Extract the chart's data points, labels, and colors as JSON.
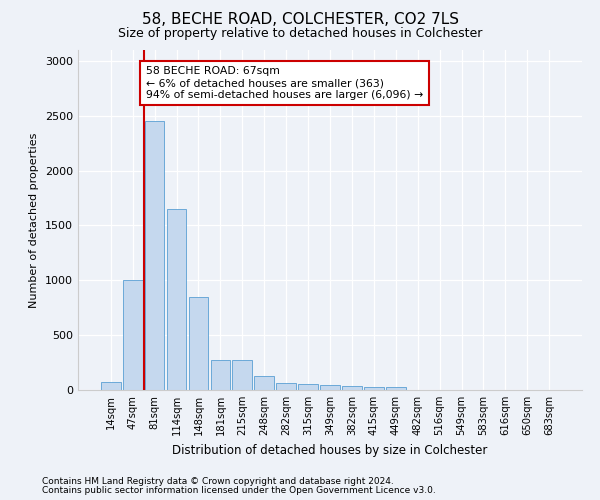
{
  "title1": "58, BECHE ROAD, COLCHESTER, CO2 7LS",
  "title2": "Size of property relative to detached houses in Colchester",
  "xlabel": "Distribution of detached houses by size in Colchester",
  "ylabel": "Number of detached properties",
  "categories": [
    "14sqm",
    "47sqm",
    "81sqm",
    "114sqm",
    "148sqm",
    "181sqm",
    "215sqm",
    "248sqm",
    "282sqm",
    "315sqm",
    "349sqm",
    "382sqm",
    "415sqm",
    "449sqm",
    "482sqm",
    "516sqm",
    "549sqm",
    "583sqm",
    "616sqm",
    "650sqm",
    "683sqm"
  ],
  "values": [
    75,
    1000,
    2450,
    1650,
    850,
    270,
    270,
    130,
    60,
    55,
    50,
    40,
    30,
    25,
    0,
    0,
    0,
    0,
    0,
    0,
    0
  ],
  "bar_color": "#c5d8ee",
  "bar_edge_color": "#5a9fd4",
  "vline_x": 1.5,
  "vline_color": "#cc0000",
  "annotation_text": "58 BECHE ROAD: 67sqm\n← 6% of detached houses are smaller (363)\n94% of semi-detached houses are larger (6,096) →",
  "annotation_box_color": "#ffffff",
  "annotation_box_edgecolor": "#cc0000",
  "ylim": [
    0,
    3100
  ],
  "yticks": [
    0,
    500,
    1000,
    1500,
    2000,
    2500,
    3000
  ],
  "footer1": "Contains HM Land Registry data © Crown copyright and database right 2024.",
  "footer2": "Contains public sector information licensed under the Open Government Licence v3.0.",
  "bg_color": "#eef2f8",
  "plot_bg_color": "#eef2f8",
  "grid_color": "#ffffff",
  "spine_color": "#cccccc"
}
